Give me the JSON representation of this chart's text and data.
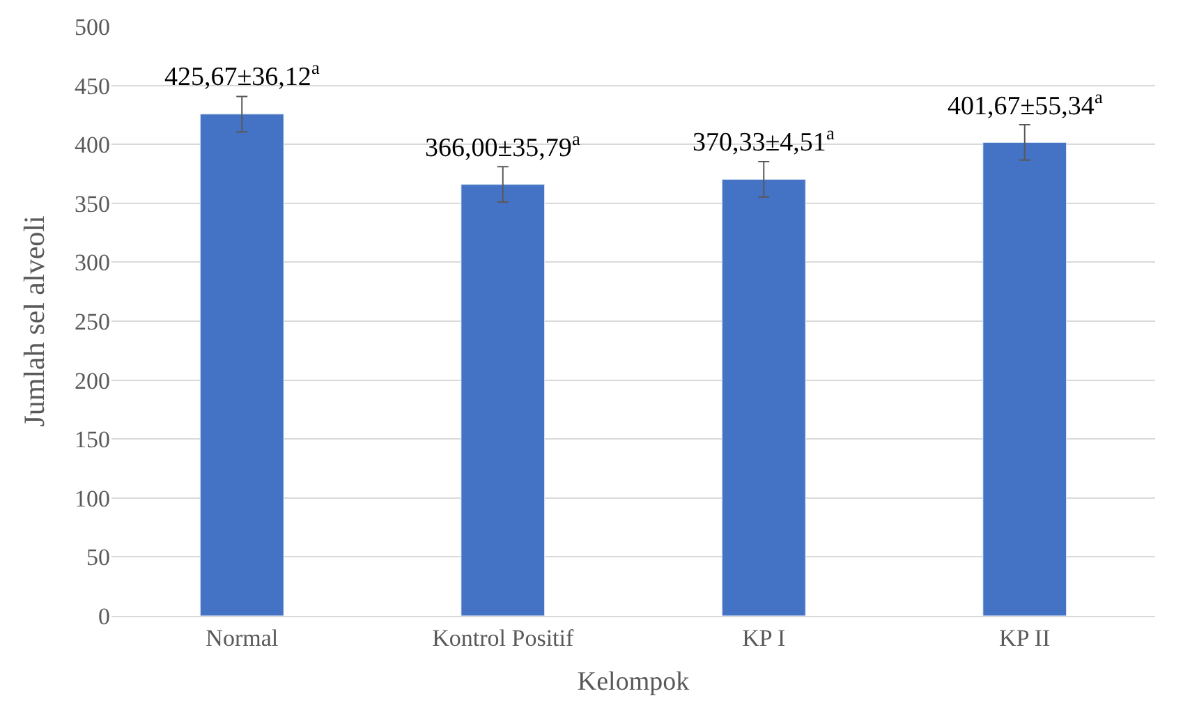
{
  "chart_data": {
    "type": "bar",
    "xlabel": "Kelompok",
    "ylabel": "Jumlah sel alveoli",
    "categories": [
      "Normal",
      "Kontrol Positif",
      "KP I",
      "KP II"
    ],
    "values": [
      425.67,
      366.0,
      370.33,
      401.67
    ],
    "errors": [
      15,
      15,
      15,
      15
    ],
    "value_labels": [
      "425,67±36,12$^{a}$",
      "366,00±35,79$^{a}$",
      "370,33±4,51$^{a}$",
      "401,67±55,34$^{a}$"
    ],
    "color": "#4472c4",
    "ylim": [
      0,
      500
    ],
    "yticks": [
      0,
      50,
      100,
      150,
      200,
      250,
      300,
      350,
      400,
      450,
      500
    ],
    "grid": "y"
  }
}
